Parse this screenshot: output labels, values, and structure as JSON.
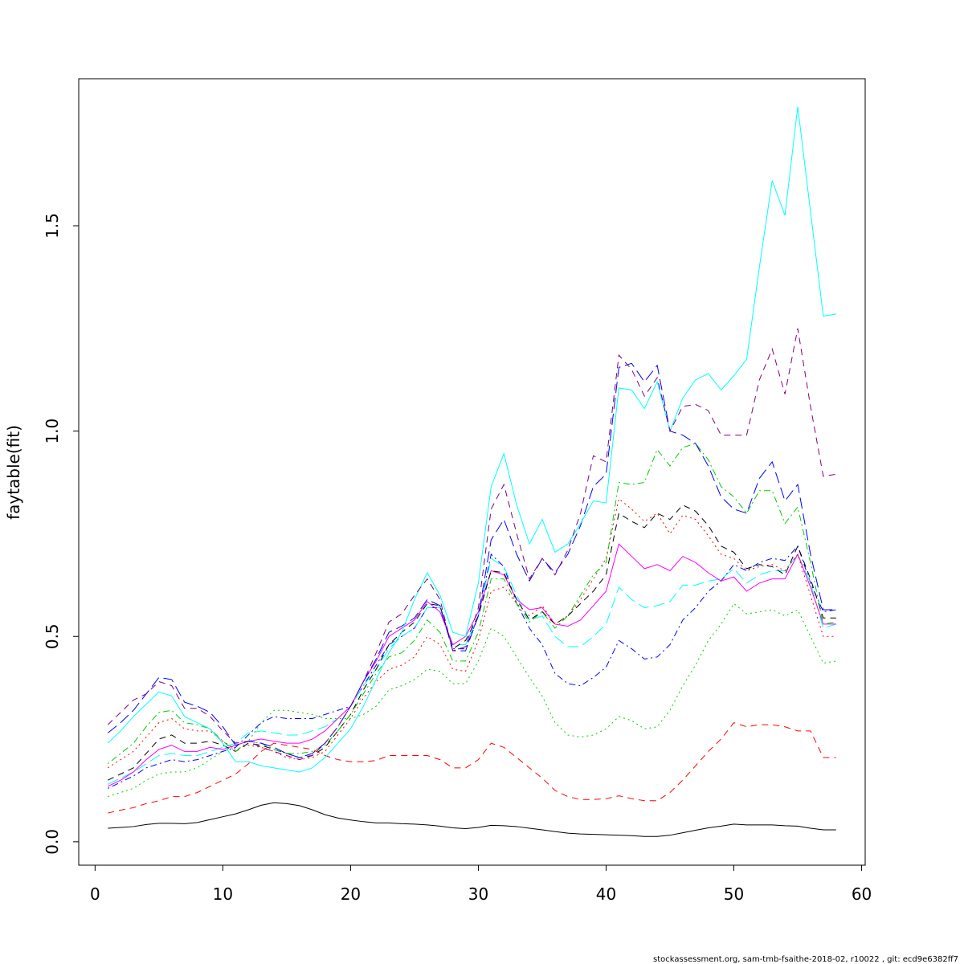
{
  "chart_data": {
    "type": "line",
    "y_label": "faytable(fit)",
    "footer": "stockassessment.org, sam-tmb-fsaithe-2018-02, r10022 , git: ecd9e6382ff7",
    "x": [
      1,
      2,
      3,
      4,
      5,
      6,
      7,
      8,
      9,
      10,
      11,
      12,
      13,
      14,
      15,
      16,
      17,
      18,
      19,
      20,
      21,
      22,
      23,
      24,
      25,
      26,
      27,
      28,
      29,
      30,
      31,
      32,
      33,
      34,
      35,
      36,
      37,
      38,
      39,
      40,
      41,
      42,
      43,
      44,
      45,
      46,
      47,
      48,
      49,
      50,
      51,
      52,
      53,
      54,
      55,
      56,
      57,
      58
    ],
    "xlim": [
      -1.28,
      60.28
    ],
    "ylim": [
      -0.057,
      1.858
    ],
    "xticks": [
      0,
      10,
      20,
      30,
      40,
      50,
      60
    ],
    "yticks": [
      {
        "value": 0,
        "label": "0.0"
      },
      0.5,
      {
        "value": 1,
        "label": "1.0"
      },
      1.5
    ],
    "series": [
      {
        "color": "#000000",
        "dash": "solid",
        "values": [
          0.033,
          0.035,
          0.037,
          0.042,
          0.045,
          0.045,
          0.044,
          0.047,
          0.054,
          0.061,
          0.068,
          0.078,
          0.089,
          0.095,
          0.093,
          0.088,
          0.078,
          0.066,
          0.058,
          0.053,
          0.049,
          0.046,
          0.046,
          0.044,
          0.043,
          0.041,
          0.038,
          0.034,
          0.032,
          0.035,
          0.04,
          0.039,
          0.037,
          0.033,
          0.029,
          0.025,
          0.021,
          0.019,
          0.018,
          0.017,
          0.016,
          0.015,
          0.013,
          0.013,
          0.016,
          0.022,
          0.028,
          0.034,
          0.038,
          0.043,
          0.041,
          0.041,
          0.041,
          0.039,
          0.038,
          0.033,
          0.029,
          0.029
        ]
      },
      {
        "color": "#ff0000",
        "dash": "dashed",
        "values": [
          0.07,
          0.077,
          0.083,
          0.093,
          0.1,
          0.11,
          0.11,
          0.12,
          0.135,
          0.15,
          0.165,
          0.19,
          0.22,
          0.24,
          0.235,
          0.23,
          0.225,
          0.21,
          0.2,
          0.195,
          0.195,
          0.198,
          0.21,
          0.21,
          0.21,
          0.21,
          0.2,
          0.18,
          0.18,
          0.2,
          0.24,
          0.23,
          0.205,
          0.18,
          0.155,
          0.125,
          0.11,
          0.103,
          0.103,
          0.105,
          0.112,
          0.105,
          0.1,
          0.1,
          0.12,
          0.15,
          0.185,
          0.22,
          0.25,
          0.29,
          0.28,
          0.285,
          0.285,
          0.28,
          0.27,
          0.27,
          0.205,
          0.205
        ]
      },
      {
        "color": "#00cd00",
        "dash": "dotted",
        "values": [
          0.11,
          0.12,
          0.13,
          0.15,
          0.165,
          0.17,
          0.17,
          0.18,
          0.2,
          0.22,
          0.235,
          0.245,
          0.29,
          0.32,
          0.32,
          0.315,
          0.31,
          0.3,
          0.3,
          0.3,
          0.31,
          0.33,
          0.37,
          0.38,
          0.395,
          0.42,
          0.415,
          0.385,
          0.385,
          0.44,
          0.52,
          0.5,
          0.45,
          0.4,
          0.355,
          0.29,
          0.26,
          0.255,
          0.26,
          0.275,
          0.305,
          0.295,
          0.275,
          0.28,
          0.32,
          0.38,
          0.43,
          0.49,
          0.53,
          0.58,
          0.555,
          0.56,
          0.565,
          0.55,
          0.565,
          0.5,
          0.435,
          0.44
        ]
      },
      {
        "color": "#0000ff",
        "dash": "dotdash",
        "values": [
          0.13,
          0.145,
          0.16,
          0.18,
          0.19,
          0.2,
          0.195,
          0.2,
          0.21,
          0.22,
          0.23,
          0.26,
          0.29,
          0.305,
          0.3,
          0.3,
          0.3,
          0.31,
          0.32,
          0.33,
          0.38,
          0.43,
          0.48,
          0.5,
          0.52,
          0.57,
          0.57,
          0.47,
          0.47,
          0.55,
          0.7,
          0.67,
          0.58,
          0.52,
          0.48,
          0.41,
          0.385,
          0.38,
          0.4,
          0.425,
          0.49,
          0.47,
          0.445,
          0.45,
          0.48,
          0.54,
          0.57,
          0.61,
          0.635,
          0.675,
          0.66,
          0.68,
          0.69,
          0.685,
          0.72,
          0.63,
          0.56,
          0.565
        ]
      },
      {
        "color": "#00ffff",
        "dash": "longdash",
        "values": [
          0.14,
          0.155,
          0.17,
          0.19,
          0.21,
          0.215,
          0.21,
          0.21,
          0.22,
          0.23,
          0.24,
          0.265,
          0.27,
          0.265,
          0.26,
          0.26,
          0.27,
          0.28,
          0.3,
          0.33,
          0.38,
          0.42,
          0.47,
          0.5,
          0.52,
          0.57,
          0.57,
          0.48,
          0.48,
          0.55,
          0.69,
          0.67,
          0.6,
          0.54,
          0.55,
          0.5,
          0.475,
          0.475,
          0.5,
          0.53,
          0.62,
          0.59,
          0.57,
          0.575,
          0.585,
          0.625,
          0.625,
          0.635,
          0.64,
          0.665,
          0.63,
          0.65,
          0.66,
          0.66,
          0.7,
          0.63,
          0.52,
          0.53
        ]
      },
      {
        "color": "#ff00ff",
        "dash": "solid",
        "values": [
          0.135,
          0.15,
          0.17,
          0.2,
          0.225,
          0.235,
          0.22,
          0.22,
          0.23,
          0.225,
          0.235,
          0.245,
          0.25,
          0.245,
          0.24,
          0.24,
          0.25,
          0.27,
          0.3,
          0.33,
          0.39,
          0.44,
          0.5,
          0.52,
          0.54,
          0.585,
          0.56,
          0.48,
          0.5,
          0.56,
          0.66,
          0.65,
          0.59,
          0.565,
          0.57,
          0.53,
          0.525,
          0.54,
          0.575,
          0.61,
          0.725,
          0.695,
          0.665,
          0.675,
          0.66,
          0.695,
          0.68,
          0.655,
          0.635,
          0.645,
          0.61,
          0.63,
          0.64,
          0.64,
          0.7,
          0.62,
          0.53,
          0.53
        ]
      },
      {
        "color": "#000000",
        "dash": "dashed",
        "values": [
          0.15,
          0.165,
          0.18,
          0.215,
          0.25,
          0.26,
          0.24,
          0.24,
          0.245,
          0.235,
          0.22,
          0.24,
          0.235,
          0.225,
          0.215,
          0.205,
          0.21,
          0.23,
          0.27,
          0.31,
          0.37,
          0.42,
          0.48,
          0.51,
          0.535,
          0.58,
          0.575,
          0.47,
          0.49,
          0.55,
          0.66,
          0.655,
          0.59,
          0.54,
          0.56,
          0.53,
          0.55,
          0.58,
          0.61,
          0.65,
          0.8,
          0.78,
          0.765,
          0.8,
          0.785,
          0.82,
          0.805,
          0.77,
          0.72,
          0.705,
          0.665,
          0.675,
          0.67,
          0.65,
          0.72,
          0.64,
          0.545,
          0.545
        ]
      },
      {
        "color": "#ff0000",
        "dash": "dotted",
        "values": [
          0.18,
          0.2,
          0.22,
          0.255,
          0.29,
          0.3,
          0.275,
          0.27,
          0.27,
          0.245,
          0.225,
          0.235,
          0.23,
          0.22,
          0.205,
          0.2,
          0.205,
          0.22,
          0.26,
          0.3,
          0.35,
          0.39,
          0.42,
          0.43,
          0.45,
          0.5,
          0.48,
          0.42,
          0.415,
          0.49,
          0.61,
          0.62,
          0.58,
          0.55,
          0.575,
          0.53,
          0.55,
          0.59,
          0.64,
          0.69,
          0.835,
          0.81,
          0.78,
          0.8,
          0.75,
          0.795,
          0.785,
          0.745,
          0.7,
          0.69,
          0.66,
          0.67,
          0.675,
          0.66,
          0.7,
          0.6,
          0.5,
          0.5
        ]
      },
      {
        "color": "#00cd00",
        "dash": "dotdash",
        "values": [
          0.19,
          0.215,
          0.24,
          0.28,
          0.315,
          0.32,
          0.29,
          0.285,
          0.275,
          0.245,
          0.22,
          0.245,
          0.24,
          0.225,
          0.215,
          0.215,
          0.22,
          0.235,
          0.27,
          0.31,
          0.36,
          0.41,
          0.45,
          0.46,
          0.49,
          0.54,
          0.51,
          0.44,
          0.44,
          0.51,
          0.64,
          0.64,
          0.58,
          0.535,
          0.56,
          0.52,
          0.55,
          0.6,
          0.65,
          0.68,
          0.875,
          0.87,
          0.875,
          0.955,
          0.915,
          0.96,
          0.97,
          0.93,
          0.865,
          0.84,
          0.8,
          0.855,
          0.855,
          0.775,
          0.815,
          0.68,
          0.53,
          0.535
        ]
      },
      {
        "color": "#0000ff",
        "dash": "longdash",
        "values": [
          0.265,
          0.29,
          0.32,
          0.36,
          0.4,
          0.395,
          0.34,
          0.33,
          0.315,
          0.28,
          0.235,
          0.245,
          0.24,
          0.23,
          0.215,
          0.205,
          0.215,
          0.24,
          0.28,
          0.33,
          0.39,
          0.445,
          0.51,
          0.525,
          0.545,
          0.59,
          0.575,
          0.465,
          0.465,
          0.55,
          0.735,
          0.785,
          0.7,
          0.635,
          0.69,
          0.655,
          0.7,
          0.77,
          0.865,
          0.895,
          1.155,
          1.165,
          1.12,
          1.16,
          1.0,
          0.99,
          0.97,
          0.915,
          0.84,
          0.81,
          0.8,
          0.885,
          0.925,
          0.83,
          0.87,
          0.7,
          0.565,
          0.565
        ]
      },
      {
        "color": "#00ffff",
        "dash": "solid",
        "values": [
          0.24,
          0.27,
          0.305,
          0.335,
          0.365,
          0.355,
          0.305,
          0.29,
          0.275,
          0.24,
          0.195,
          0.195,
          0.185,
          0.18,
          0.175,
          0.17,
          0.18,
          0.205,
          0.24,
          0.275,
          0.33,
          0.395,
          0.46,
          0.51,
          0.59,
          0.655,
          0.6,
          0.51,
          0.5,
          0.63,
          0.865,
          0.945,
          0.82,
          0.725,
          0.785,
          0.705,
          0.725,
          0.775,
          0.83,
          0.825,
          1.105,
          1.1,
          1.055,
          1.12,
          1.0,
          1.08,
          1.125,
          1.14,
          1.1,
          1.135,
          1.175,
          1.4,
          1.61,
          1.525,
          1.79,
          1.535,
          1.28,
          1.285
        ]
      },
      {
        "color": "#7f007f",
        "dash": "dashed",
        "values": [
          0.285,
          0.315,
          0.345,
          0.36,
          0.39,
          0.38,
          0.325,
          0.325,
          0.305,
          0.27,
          0.24,
          0.245,
          0.23,
          0.22,
          0.21,
          0.2,
          0.21,
          0.24,
          0.28,
          0.33,
          0.39,
          0.46,
          0.535,
          0.555,
          0.6,
          0.64,
          0.59,
          0.465,
          0.475,
          0.57,
          0.81,
          0.87,
          0.75,
          0.64,
          0.69,
          0.65,
          0.71,
          0.8,
          0.94,
          0.925,
          1.185,
          1.15,
          1.085,
          1.13,
          1.0,
          1.06,
          1.065,
          1.05,
          0.99,
          0.99,
          0.99,
          1.125,
          1.2,
          1.09,
          1.25,
          1.06,
          0.89,
          0.895
        ]
      }
    ]
  }
}
